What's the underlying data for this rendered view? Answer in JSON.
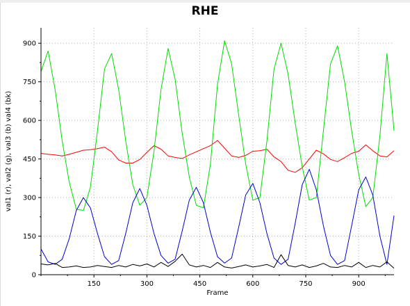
{
  "chart_data": {
    "type": "line",
    "title": "RHE",
    "xlabel": "Frame",
    "ylabel": "val1 (r), val2 (g), val3 (b) val4 (bk)",
    "xlim": [
      0,
      1000
    ],
    "ylim": [
      0,
      960
    ],
    "x_ticks": [
      150,
      300,
      450,
      600,
      750,
      900
    ],
    "y_ticks": [
      0,
      150,
      300,
      450,
      600,
      750,
      900
    ],
    "grid": true,
    "series": [
      {
        "name": "val1",
        "color": "#ff0000",
        "x": [
          0,
          20,
          40,
          60,
          80,
          100,
          120,
          140,
          160,
          180,
          200,
          220,
          240,
          260,
          280,
          300,
          320,
          340,
          360,
          380,
          400,
          420,
          440,
          460,
          480,
          500,
          520,
          540,
          560,
          580,
          600,
          620,
          640,
          660,
          680,
          700,
          720,
          740,
          760,
          780,
          800,
          820,
          840,
          860,
          880,
          900,
          920,
          940,
          960,
          980,
          1000
        ],
        "values": [
          472,
          468,
          466,
          462,
          468,
          476,
          484,
          486,
          490,
          496,
          478,
          446,
          434,
          434,
          448,
          476,
          502,
          488,
          462,
          456,
          452,
          466,
          478,
          490,
          502,
          522,
          492,
          462,
          456,
          464,
          480,
          482,
          488,
          458,
          440,
          406,
          398,
          416,
          450,
          484,
          470,
          448,
          440,
          455,
          472,
          480,
          505,
          482,
          462,
          458,
          482
        ]
      },
      {
        "name": "val2",
        "color": "#00dd00",
        "x": [
          0,
          20,
          40,
          60,
          80,
          100,
          120,
          140,
          160,
          180,
          200,
          220,
          240,
          260,
          280,
          300,
          320,
          340,
          360,
          380,
          400,
          420,
          440,
          460,
          480,
          500,
          520,
          540,
          560,
          580,
          600,
          620,
          640,
          660,
          680,
          700,
          720,
          740,
          760,
          780,
          800,
          820,
          840,
          860,
          880,
          900,
          920,
          940,
          960,
          980,
          1000
        ],
        "values": [
          790,
          870,
          720,
          520,
          360,
          255,
          250,
          340,
          560,
          800,
          860,
          720,
          520,
          350,
          270,
          300,
          480,
          720,
          880,
          760,
          550,
          380,
          270,
          260,
          430,
          740,
          910,
          820,
          620,
          430,
          290,
          300,
          520,
          800,
          900,
          780,
          590,
          420,
          290,
          300,
          560,
          820,
          890,
          750,
          560,
          390,
          265,
          300,
          540,
          860,
          560
        ]
      },
      {
        "name": "val3",
        "color": "#0000cc",
        "x": [
          0,
          20,
          40,
          60,
          80,
          100,
          120,
          140,
          160,
          180,
          200,
          220,
          240,
          260,
          280,
          300,
          320,
          340,
          360,
          380,
          400,
          420,
          440,
          460,
          480,
          500,
          520,
          540,
          560,
          580,
          600,
          620,
          640,
          660,
          680,
          700,
          720,
          740,
          760,
          780,
          800,
          820,
          840,
          860,
          880,
          900,
          920,
          940,
          960,
          980,
          1000
        ],
        "values": [
          100,
          50,
          40,
          60,
          140,
          250,
          300,
          260,
          160,
          70,
          40,
          55,
          160,
          280,
          335,
          270,
          160,
          75,
          45,
          60,
          170,
          290,
          340,
          280,
          165,
          70,
          45,
          65,
          185,
          310,
          355,
          280,
          160,
          65,
          40,
          60,
          200,
          350,
          410,
          330,
          190,
          75,
          40,
          55,
          190,
          330,
          380,
          310,
          150,
          40,
          230
        ]
      },
      {
        "name": "val4",
        "color": "#000000",
        "x": [
          0,
          20,
          40,
          60,
          80,
          100,
          120,
          140,
          160,
          180,
          200,
          220,
          240,
          260,
          280,
          300,
          320,
          340,
          360,
          380,
          400,
          420,
          440,
          460,
          480,
          500,
          520,
          540,
          560,
          580,
          600,
          620,
          640,
          660,
          680,
          700,
          720,
          740,
          760,
          780,
          800,
          820,
          840,
          860,
          880,
          900,
          920,
          940,
          960,
          980,
          1000
        ],
        "values": [
          42,
          38,
          44,
          28,
          30,
          34,
          28,
          30,
          36,
          32,
          28,
          36,
          30,
          40,
          34,
          42,
          30,
          48,
          32,
          52,
          80,
          38,
          30,
          36,
          28,
          48,
          30,
          26,
          32,
          38,
          30,
          34,
          40,
          28,
          78,
          36,
          30,
          38,
          28,
          34,
          44,
          30,
          28,
          36,
          30,
          48,
          28,
          36,
          30,
          50,
          25
        ]
      }
    ]
  }
}
